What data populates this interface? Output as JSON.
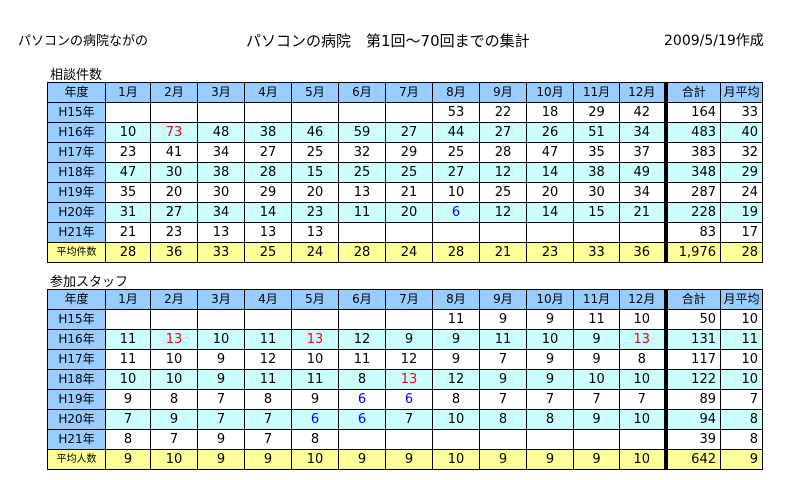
{
  "header": {
    "org": "パソコンの病院ながの",
    "title": "パソコンの病院　第1回～70回までの集計",
    "created": "2009/5/19作成"
  },
  "columns": [
    "年度",
    "1月",
    "2月",
    "3月",
    "4月",
    "5月",
    "6月",
    "7月",
    "8月",
    "9月",
    "10月",
    "11月",
    "12月",
    "合計",
    "月平均"
  ],
  "table1": {
    "title": "相談件数",
    "rows": [
      {
        "label": "H15年",
        "cells": [
          "",
          "",
          "",
          "",
          "",
          "",
          "",
          53,
          22,
          18,
          29,
          42,
          164,
          33
        ]
      },
      {
        "label": "H16年",
        "cells": [
          10,
          73,
          48,
          38,
          46,
          59,
          27,
          44,
          27,
          26,
          51,
          34,
          483,
          40
        ]
      },
      {
        "label": "H17年",
        "cells": [
          23,
          41,
          34,
          27,
          25,
          32,
          29,
          25,
          28,
          47,
          35,
          37,
          383,
          32
        ]
      },
      {
        "label": "H18年",
        "cells": [
          47,
          30,
          38,
          28,
          15,
          25,
          25,
          27,
          12,
          14,
          38,
          49,
          348,
          29
        ]
      },
      {
        "label": "H19年",
        "cells": [
          35,
          20,
          30,
          29,
          20,
          13,
          21,
          10,
          25,
          20,
          30,
          34,
          287,
          24
        ]
      },
      {
        "label": "H20年",
        "cells": [
          31,
          27,
          34,
          14,
          23,
          11,
          20,
          6,
          12,
          14,
          15,
          21,
          228,
          19
        ]
      },
      {
        "label": "H21年",
        "cells": [
          21,
          23,
          13,
          13,
          13,
          "",
          "",
          "",
          "",
          "",
          "",
          "",
          83,
          17
        ]
      }
    ],
    "average": {
      "label": "平均件数",
      "cells": [
        28,
        36,
        33,
        25,
        24,
        28,
        24,
        28,
        21,
        23,
        33,
        36,
        "1,976",
        28
      ]
    },
    "red_cells": [
      [
        1,
        1
      ]
    ],
    "blue_cells": [
      [
        5,
        7
      ]
    ]
  },
  "table2": {
    "title": "参加スタッフ",
    "rows": [
      {
        "label": "H15年",
        "cells": [
          "",
          "",
          "",
          "",
          "",
          "",
          "",
          11,
          9,
          9,
          11,
          10,
          50,
          10
        ]
      },
      {
        "label": "H16年",
        "cells": [
          11,
          13,
          10,
          11,
          13,
          12,
          9,
          9,
          11,
          10,
          9,
          13,
          131,
          11
        ]
      },
      {
        "label": "H17年",
        "cells": [
          11,
          10,
          9,
          12,
          10,
          11,
          12,
          9,
          7,
          9,
          9,
          8,
          117,
          10
        ]
      },
      {
        "label": "H18年",
        "cells": [
          10,
          10,
          9,
          11,
          11,
          8,
          13,
          12,
          9,
          9,
          10,
          10,
          122,
          10
        ]
      },
      {
        "label": "H19年",
        "cells": [
          9,
          8,
          7,
          8,
          9,
          6,
          6,
          8,
          7,
          7,
          7,
          7,
          89,
          7
        ]
      },
      {
        "label": "H20年",
        "cells": [
          7,
          9,
          7,
          7,
          6,
          6,
          7,
          10,
          8,
          8,
          9,
          10,
          94,
          8
        ]
      },
      {
        "label": "H21年",
        "cells": [
          8,
          7,
          9,
          7,
          8,
          "",
          "",
          "",
          "",
          "",
          "",
          "",
          39,
          8
        ]
      }
    ],
    "average": {
      "label": "平均人数",
      "cells": [
        9,
        10,
        9,
        9,
        10,
        9,
        9,
        10,
        9,
        9,
        9,
        10,
        642,
        9
      ]
    },
    "red_cells": [
      [
        1,
        1
      ],
      [
        1,
        4
      ],
      [
        1,
        11
      ],
      [
        3,
        6
      ]
    ],
    "blue_cells": [
      [
        4,
        5
      ],
      [
        4,
        6
      ],
      [
        5,
        4
      ],
      [
        5,
        5
      ]
    ]
  }
}
